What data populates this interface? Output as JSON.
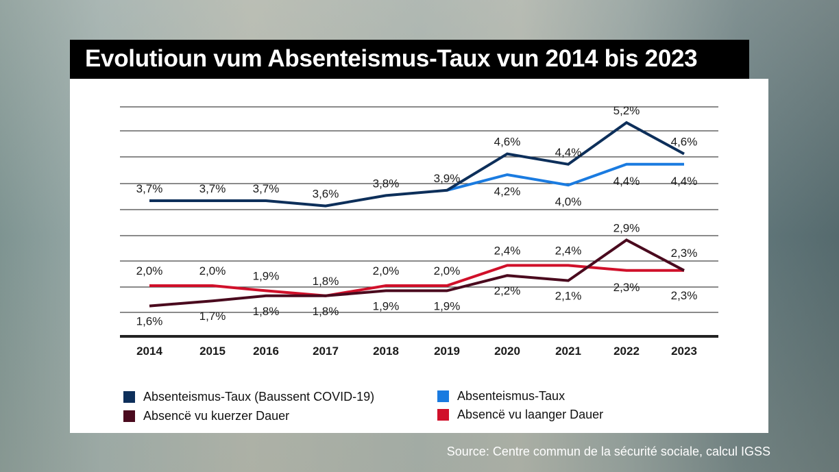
{
  "title": "Evolutioun vum Absenteismus-Taux vun 2014 bis 2023",
  "source": "Source: Centre commun de la sécurité sociale, calcul IGSS",
  "colors": {
    "covid": "#0d2f5a",
    "total": "#1a7be0",
    "short": "#4a0a1e",
    "long": "#d0102a",
    "grid": "#444444",
    "baseline": "#222222"
  },
  "chart_data": {
    "type": "line",
    "title": "Evolutioun vum Absenteismus-Taux vun 2014 bis 2023",
    "xlabel": "",
    "ylabel": "",
    "x": [
      "2014",
      "2015",
      "2016",
      "2017",
      "2018",
      "2019",
      "2020",
      "2021",
      "2022",
      "2023"
    ],
    "grid": true,
    "legend_position": "bottom",
    "panels": [
      {
        "name": "upper",
        "series": [
          {
            "key": "covid",
            "name": "Absenteismus-Taux (Baussent COVID-19)",
            "values": [
              3.7,
              3.7,
              3.7,
              3.6,
              3.8,
              3.9,
              4.6,
              4.4,
              5.2,
              4.6
            ],
            "labels": [
              "3,7%",
              "3,7%",
              "3,7%",
              "3,6%",
              "3,8%",
              "3,9%",
              "4,6%",
              "4,4%",
              "5,2%",
              "4,6%"
            ]
          },
          {
            "key": "total",
            "name": "Absenteismus-Taux",
            "values": [
              null,
              null,
              null,
              null,
              null,
              3.9,
              4.2,
              4.0,
              4.4,
              4.4
            ],
            "labels": [
              "",
              "",
              "",
              "",
              "",
              "",
              "4,2%",
              "4,0%",
              "4,4%",
              "4,4%"
            ]
          }
        ]
      },
      {
        "name": "lower",
        "series": [
          {
            "key": "long",
            "name": "Absencë vu laanger Dauer",
            "values": [
              2.0,
              2.0,
              1.9,
              1.8,
              2.0,
              2.0,
              2.4,
              2.4,
              2.3,
              2.3
            ],
            "labels": [
              "2,0%",
              "2,0%",
              "1,9%",
              "1,8%",
              "2,0%",
              "2,0%",
              "2,4%",
              "2,4%",
              "2,3%",
              "2,3%"
            ]
          },
          {
            "key": "short",
            "name": "Absencë vu kuerzer Dauer",
            "values": [
              1.6,
              1.7,
              1.8,
              1.8,
              1.9,
              1.9,
              2.2,
              2.1,
              2.9,
              2.3
            ],
            "labels": [
              "1,6%",
              "1,7%",
              "1,8%",
              "1,8%",
              "1,9%",
              "1,9%",
              "2,2%",
              "2,1%",
              "2,9%",
              "2,3%"
            ]
          }
        ]
      }
    ]
  },
  "legend": [
    {
      "key": "covid",
      "label": "Absenteismus-Taux (Baussent COVID-19)"
    },
    {
      "key": "total",
      "label": "Absenteismus-Taux"
    },
    {
      "key": "short",
      "label": "Absencë vu kuerzer Dauer"
    },
    {
      "key": "long",
      "label": "Absencë vu laanger Dauer"
    }
  ]
}
